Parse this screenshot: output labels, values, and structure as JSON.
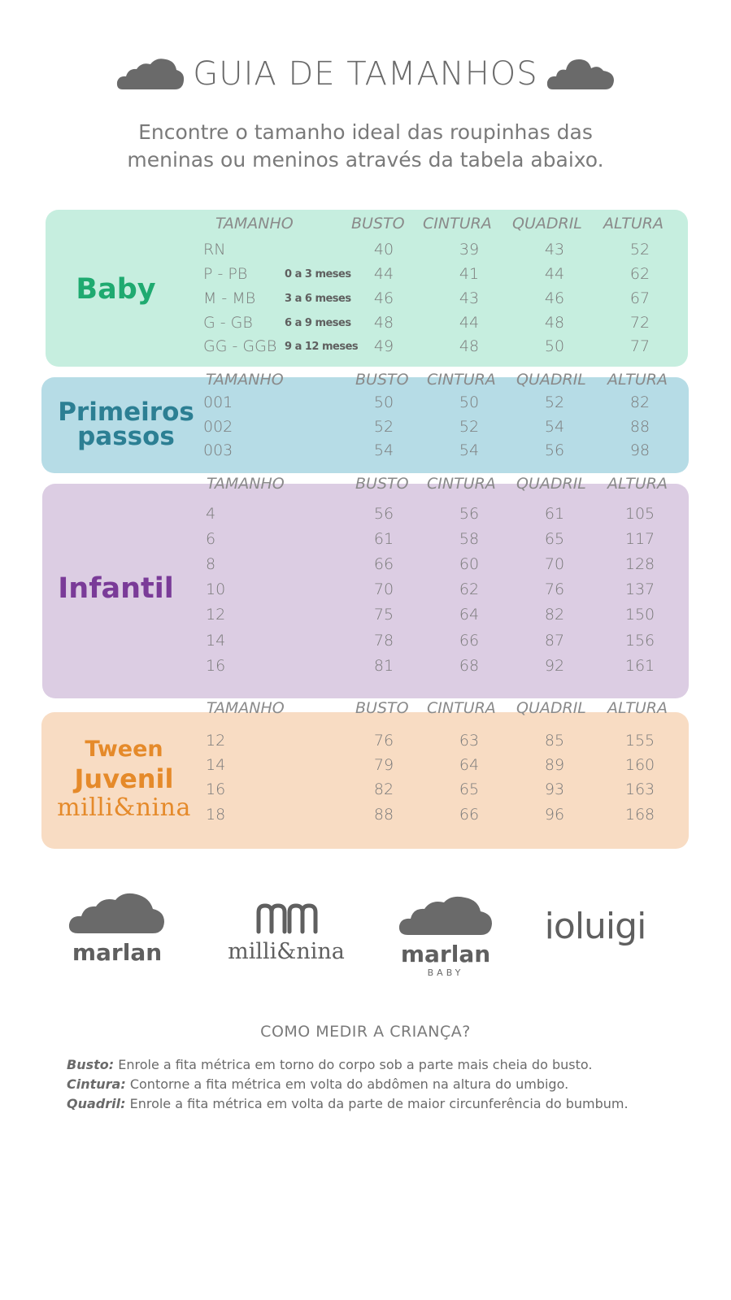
{
  "header": {
    "title": "GUIA DE TAMANHOS",
    "subtitle_line1": "Encontre o tamanho ideal das roupinhas das",
    "subtitle_line2": "meninas ou meninos através da tabela abaixo."
  },
  "columns": [
    "TAMANHO",
    "BUSTO",
    "CINTURA",
    "QUADRIL",
    "ALTURA"
  ],
  "baby": {
    "category": "Baby",
    "rows": [
      {
        "size": "RN",
        "age": "",
        "busto": "40",
        "cintura": "39",
        "quadril": "43",
        "altura": "52"
      },
      {
        "size": "P - PB",
        "age": "0 a 3 meses",
        "busto": "44",
        "cintura": "41",
        "quadril": "44",
        "altura": "62"
      },
      {
        "size": "M - MB",
        "age": "3 a 6 meses",
        "busto": "46",
        "cintura": "43",
        "quadril": "46",
        "altura": "67"
      },
      {
        "size": "G - GB",
        "age": "6 a 9 meses",
        "busto": "48",
        "cintura": "44",
        "quadril": "48",
        "altura": "72"
      },
      {
        "size": "GG - GGB",
        "age": "9 a 12 meses",
        "busto": "49",
        "cintura": "48",
        "quadril": "50",
        "altura": "77"
      }
    ]
  },
  "primeiros": {
    "category_line1": "Primeiros",
    "category_line2": "passos",
    "rows": [
      {
        "size": "001",
        "busto": "50",
        "cintura": "50",
        "quadril": "52",
        "altura": "82"
      },
      {
        "size": "002",
        "busto": "52",
        "cintura": "52",
        "quadril": "54",
        "altura": "88"
      },
      {
        "size": "003",
        "busto": "54",
        "cintura": "54",
        "quadril": "56",
        "altura": "98"
      }
    ]
  },
  "infantil": {
    "category": "Infantil",
    "rows": [
      {
        "size": "4",
        "busto": "56",
        "cintura": "56",
        "quadril": "61",
        "altura": "105"
      },
      {
        "size": "6",
        "busto": "61",
        "cintura": "58",
        "quadril": "65",
        "altura": "117"
      },
      {
        "size": "8",
        "busto": "66",
        "cintura": "60",
        "quadril": "70",
        "altura": "128"
      },
      {
        "size": "10",
        "busto": "70",
        "cintura": "62",
        "quadril": "76",
        "altura": "137"
      },
      {
        "size": "12",
        "busto": "75",
        "cintura": "64",
        "quadril": "82",
        "altura": "150"
      },
      {
        "size": "14",
        "busto": "78",
        "cintura": "66",
        "quadril": "87",
        "altura": "156"
      },
      {
        "size": "16",
        "busto": "81",
        "cintura": "68",
        "quadril": "92",
        "altura": "161"
      }
    ]
  },
  "tween": {
    "category_line1": "Tween",
    "category_line2": "Juvenil",
    "category_line3": "milli&nina",
    "rows": [
      {
        "size": "12",
        "busto": "76",
        "cintura": "63",
        "quadril": "85",
        "altura": "155"
      },
      {
        "size": "14",
        "busto": "79",
        "cintura": "64",
        "quadril": "89",
        "altura": "160"
      },
      {
        "size": "16",
        "busto": "82",
        "cintura": "65",
        "quadril": "93",
        "altura": "163"
      },
      {
        "size": "18",
        "busto": "88",
        "cintura": "66",
        "quadril": "96",
        "altura": "168"
      }
    ]
  },
  "brands": {
    "marlan": "marlan",
    "millinina": "milli&nina",
    "marlan_baby": "marlan",
    "marlan_baby_sub": "BABY",
    "ioluigi": "ioluigi"
  },
  "howto": {
    "title": "COMO MEDIR A CRIANÇA?",
    "busto_term": "Busto:",
    "busto_text": " Enrole a fita métrica em torno do corpo sob a parte mais cheia do busto.",
    "cintura_term": "Cintura:",
    "cintura_text": " Contorne a fita métrica em volta do abdômen na altura do umbigo.",
    "quadril_term": "Quadril:",
    "quadril_text": " Enrole a fita métrica em volta da parte de maior circunferência do bumbum."
  },
  "colors": {
    "baby_bg": "#c6eedf",
    "baby_accent": "#1faa70",
    "pp_bg": "#b6dce6",
    "pp_accent": "#2c7f93",
    "infantil_bg": "#dccde3",
    "infantil_accent": "#7a3b98",
    "tween_bg": "#f8dcc3",
    "tween_accent": "#e58a2a"
  },
  "icons": [
    "cloud-icon"
  ]
}
